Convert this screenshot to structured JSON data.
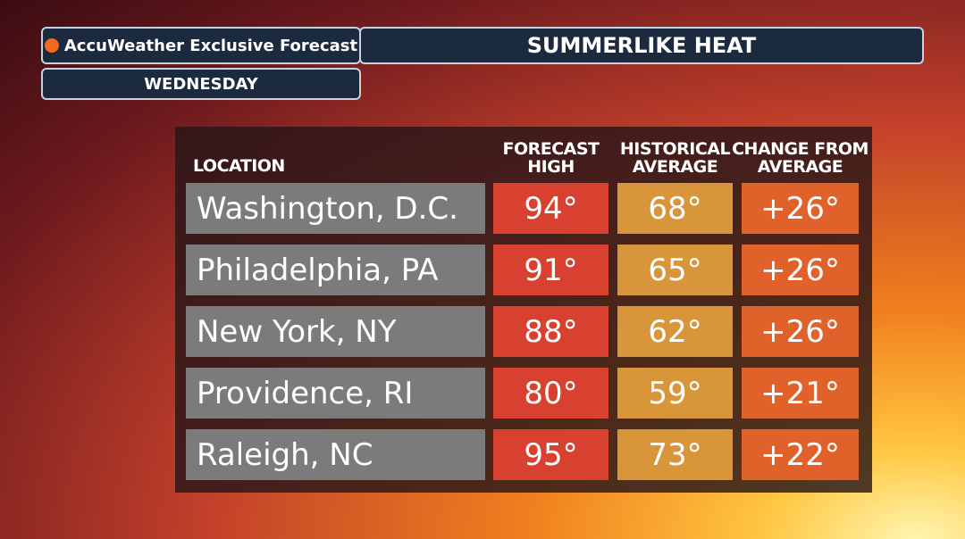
{
  "header": {
    "brand": "AccuWeather Exclusive Forecast",
    "title": "SUMMERLIKE HEAT",
    "day": "WEDNESDAY"
  },
  "table": {
    "columns": [
      "LOCATION",
      "FORECAST HIGH",
      "HISTORICAL AVERAGE",
      "CHANGE FROM AVERAGE"
    ],
    "rows": [
      [
        "Washington, D.C.",
        "94°",
        "68°",
        "+26°"
      ],
      [
        "Philadelphia, PA",
        "91°",
        "65°",
        "+26°"
      ],
      [
        "New York, NY",
        "88°",
        "62°",
        "+26°"
      ],
      [
        "Providence, RI",
        "80°",
        "59°",
        "+21°"
      ],
      [
        "Raleigh, NC",
        "95°",
        "73°",
        "+22°"
      ]
    ]
  }
}
